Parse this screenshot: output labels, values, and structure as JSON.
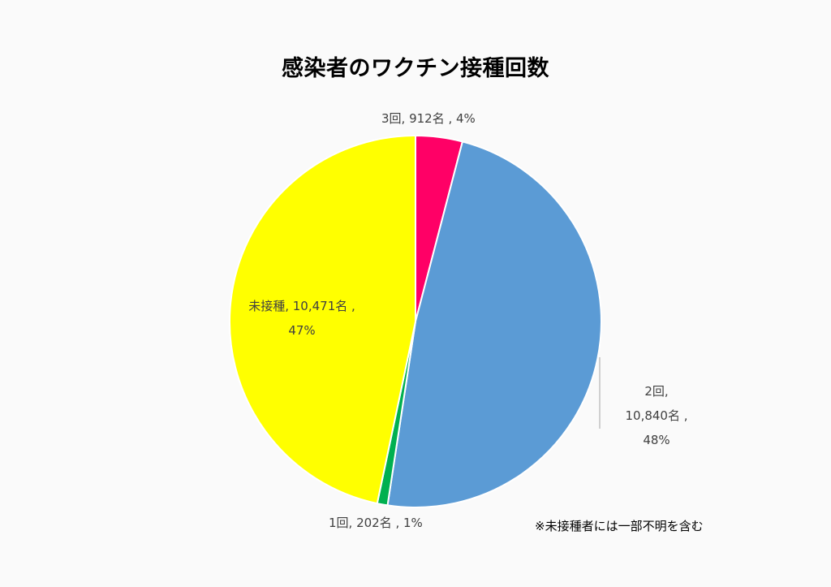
{
  "chart_data": {
    "type": "pie",
    "title": "感染者のワクチン接種回数",
    "slices": [
      {
        "category": "3回",
        "value": 912,
        "unit": "名",
        "percent": "4%",
        "color": "#ff0066"
      },
      {
        "category": "2回",
        "value": 10840,
        "unit": "名",
        "percent": "48%",
        "color": "#5b9bd5"
      },
      {
        "category": "1回",
        "value": 202,
        "unit": "名",
        "percent": "1%",
        "color": "#00b050"
      },
      {
        "category": "未接種",
        "value": 10471,
        "unit": "名",
        "percent": "47%",
        "color": "#ffff00"
      }
    ],
    "labels": [
      {
        "line1": "3回, 912名 , 4%"
      },
      {
        "line1": "2回,",
        "line2": "10,840名 ,",
        "line3": "48%"
      },
      {
        "line1": "1回, 202名 , 1%"
      },
      {
        "line1": "未接種, 10,471名 ,",
        "line2": "47%"
      }
    ],
    "footnote": "※未接種者には一部不明を含む"
  }
}
